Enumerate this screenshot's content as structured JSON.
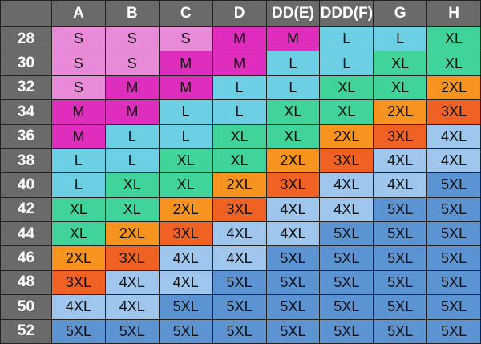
{
  "columns": [
    "A",
    "B",
    "C",
    "D",
    "DD(E)",
    "DDD(F)",
    "G",
    "H"
  ],
  "rows": [
    {
      "band": "28",
      "sizes": [
        "S",
        "S",
        "S",
        "M",
        "M",
        "L",
        "L",
        "XL"
      ]
    },
    {
      "band": "30",
      "sizes": [
        "S",
        "S",
        "M",
        "M",
        "L",
        "L",
        "XL",
        "XL"
      ]
    },
    {
      "band": "32",
      "sizes": [
        "S",
        "M",
        "M",
        "L",
        "L",
        "XL",
        "XL",
        "2XL"
      ]
    },
    {
      "band": "34",
      "sizes": [
        "M",
        "M",
        "L",
        "L",
        "XL",
        "XL",
        "2XL",
        "3XL"
      ]
    },
    {
      "band": "36",
      "sizes": [
        "M",
        "L",
        "L",
        "XL",
        "XL",
        "2XL",
        "3XL",
        "4XL"
      ]
    },
    {
      "band": "38",
      "sizes": [
        "L",
        "L",
        "XL",
        "XL",
        "2XL",
        "3XL",
        "4XL",
        "4XL"
      ]
    },
    {
      "band": "40",
      "sizes": [
        "L",
        "XL",
        "XL",
        "2XL",
        "3XL",
        "4XL",
        "4XL",
        "5XL"
      ]
    },
    {
      "band": "42",
      "sizes": [
        "XL",
        "XL",
        "2XL",
        "3XL",
        "4XL",
        "4XL",
        "5XL",
        "5XL"
      ]
    },
    {
      "band": "44",
      "sizes": [
        "XL",
        "2XL",
        "3XL",
        "4XL",
        "4XL",
        "5XL",
        "5XL",
        "5XL"
      ]
    },
    {
      "band": "46",
      "sizes": [
        "2XL",
        "3XL",
        "4XL",
        "4XL",
        "5XL",
        "5XL",
        "5XL",
        "5XL"
      ]
    },
    {
      "band": "48",
      "sizes": [
        "3XL",
        "4XL",
        "4XL",
        "5XL",
        "5XL",
        "5XL",
        "5XL",
        "5XL"
      ]
    },
    {
      "band": "50",
      "sizes": [
        "4XL",
        "4XL",
        "5XL",
        "5XL",
        "5XL",
        "5XL",
        "5XL",
        "5XL"
      ]
    },
    {
      "band": "52",
      "sizes": [
        "5XL",
        "5XL",
        "5XL",
        "5XL",
        "5XL",
        "5XL",
        "5XL",
        "5XL"
      ]
    }
  ],
  "size_colors": {
    "S": "#e88ad7",
    "M": "#df2dbe",
    "L": "#6dcfe4",
    "XL": "#40d49a",
    "2XL": "#f7931f",
    "3XL": "#f06224",
    "4XL": "#9fc6ec",
    "5XL": "#5b93d3"
  }
}
